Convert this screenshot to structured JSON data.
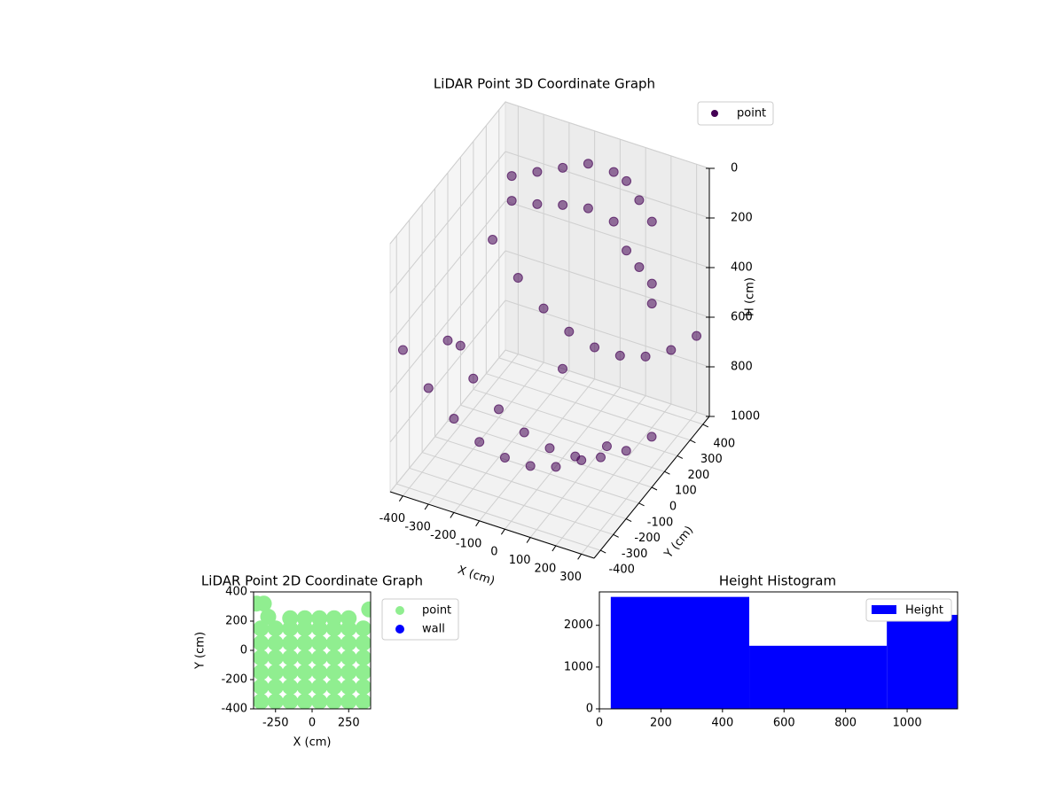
{
  "chart_data": [
    {
      "type": "scatter3d",
      "title": "LiDAR Point 3D Coordinate Graph",
      "x_label": "X (cm)",
      "y_label": "Y (cm)",
      "z_label": "H (cm)",
      "xlim": [
        -450,
        350
      ],
      "ylim": [
        -450,
        450
      ],
      "zlim": [
        1000,
        0
      ],
      "xticks": [
        -400,
        -300,
        -200,
        -100,
        0,
        100,
        200,
        300
      ],
      "yticks": [
        -400,
        -300,
        -200,
        -100,
        0,
        100,
        200,
        300,
        400
      ],
      "zticks": [
        0,
        200,
        400,
        600,
        800,
        1000
      ],
      "grid": true,
      "legend": "upper right",
      "series": [
        {
          "name": "point",
          "color": "#440154",
          "x": [
            -450,
            -350,
            -250,
            -150,
            -50,
            50,
            150,
            250,
            350,
            -450,
            -350,
            -250,
            -150,
            -50,
            50,
            150,
            250,
            350,
            -450,
            -350,
            -250,
            -150,
            -50,
            50,
            150,
            250,
            350,
            -400,
            -400,
            -300,
            -300,
            -200,
            -200,
            -100,
            -100,
            0,
            0,
            50,
            50,
            100,
            100,
            150,
            150,
            -350,
            -100,
            200
          ],
          "y": [
            -350,
            -350,
            -350,
            -350,
            -350,
            -350,
            -350,
            -350,
            -350,
            0,
            0,
            0,
            0,
            0,
            0,
            0,
            0,
            0,
            350,
            350,
            350,
            350,
            350,
            350,
            350,
            350,
            350,
            400,
            400,
            400,
            400,
            400,
            400,
            400,
            400,
            400,
            400,
            400,
            400,
            400,
            400,
            400,
            400,
            -100,
            200,
            300
          ],
          "z": [
            492,
            612,
            702,
            762,
            792,
            792,
            762,
            702,
            612,
            676,
            796,
            886,
            946,
            976,
            976,
            946,
            886,
            796,
            492,
            612,
            702,
            762,
            792,
            792,
            762,
            702,
            612,
            250,
            350,
            200,
            330,
            150,
            300,
            100,
            280,
            100,
            300,
            120,
            400,
            180,
            450,
            250,
            500,
            600,
            800,
            500
          ]
        }
      ]
    },
    {
      "type": "scatter",
      "title": "LiDAR Point 2D Coordinate Graph",
      "x_label": "X (cm)",
      "y_label": "Y (cm)",
      "xlim": [
        -400,
        400
      ],
      "ylim": [
        -400,
        400
      ],
      "xticks": [
        -250,
        0,
        250
      ],
      "yticks": [
        -400,
        -200,
        0,
        200,
        400
      ],
      "legend": "outside upper right",
      "series": [
        {
          "name": "point",
          "color": "#90ee90",
          "x": [
            -350,
            -250,
            -150,
            -50,
            50,
            150,
            250,
            350,
            -350,
            -250,
            -150,
            -50,
            50,
            150,
            250,
            350,
            -350,
            -250,
            -150,
            -50,
            50,
            150,
            250,
            350,
            -350,
            -250,
            -150,
            -50,
            50,
            150,
            250,
            350,
            -350,
            -250,
            -150,
            -50,
            50,
            150,
            250,
            350,
            -350,
            -250,
            -150,
            -50,
            50,
            150,
            250,
            350,
            -150,
            -50,
            50,
            150,
            250,
            -380,
            -330,
            -300,
            390
          ],
          "y": [
            -350,
            -350,
            -350,
            -350,
            -350,
            -350,
            -350,
            -350,
            -250,
            -250,
            -250,
            -250,
            -250,
            -250,
            -250,
            -250,
            -150,
            -150,
            -150,
            -150,
            -150,
            -150,
            -150,
            -150,
            -50,
            -50,
            -50,
            -50,
            -50,
            -50,
            -50,
            -50,
            50,
            50,
            50,
            50,
            50,
            50,
            50,
            50,
            150,
            150,
            150,
            150,
            150,
            150,
            150,
            150,
            220,
            220,
            220,
            220,
            220,
            320,
            320,
            230,
            280
          ]
        },
        {
          "name": "wall",
          "color": "#0000ff",
          "x": [],
          "y": []
        }
      ]
    },
    {
      "type": "histogram",
      "title": "Height Histogram",
      "xlim": [
        0,
        1164
      ],
      "ylim": [
        0,
        2800
      ],
      "xticks": [
        0,
        200,
        400,
        600,
        800,
        1000
      ],
      "yticks": [
        0,
        1000,
        2000
      ],
      "legend": "upper right",
      "bins": [
        37,
        487,
        934,
        1381
      ],
      "series": [
        {
          "name": "Height",
          "color": "#0000ff",
          "values": [
            2680,
            1510,
            2250
          ]
        }
      ]
    }
  ]
}
